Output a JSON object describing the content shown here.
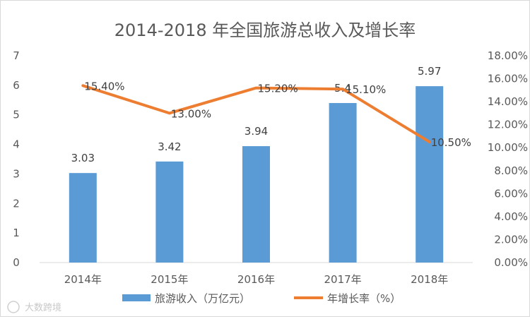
{
  "chart_data": {
    "type": "bar+line",
    "title": "2014-2018 年全国旅游总收入及增长率",
    "categories": [
      "2014年",
      "2015年",
      "2016年",
      "2017年",
      "2018年"
    ],
    "series": [
      {
        "name": "旅游收入（万亿元）",
        "type": "bar",
        "axis": "left",
        "color": "#5B9BD5",
        "values": [
          3.03,
          3.42,
          3.94,
          5.4,
          5.97
        ],
        "labels": [
          "3.03",
          "3.42",
          "3.94",
          "5.4",
          "5.97"
        ]
      },
      {
        "name": "年增长率（%）",
        "type": "line",
        "axis": "right",
        "color": "#ED7D31",
        "values": [
          15.4,
          13.0,
          15.2,
          15.1,
          10.5
        ],
        "labels": [
          "15.40%",
          "13.00%",
          "15.20%",
          "15.10%",
          "10.50%"
        ]
      }
    ],
    "y_left": {
      "min": 0,
      "max": 7,
      "step": 1,
      "tick_labels": [
        "0",
        "1",
        "2",
        "3",
        "4",
        "5",
        "6",
        "7"
      ]
    },
    "y_right": {
      "min": 0,
      "max": 18,
      "step": 2,
      "tick_labels": [
        "0.00%",
        "2.00%",
        "4.00%",
        "6.00%",
        "8.00%",
        "10.00%",
        "12.00%",
        "14.00%",
        "16.00%",
        "18.00%"
      ]
    },
    "legend_position": "bottom",
    "grid": false
  },
  "watermark": {
    "text": "大数跨境"
  },
  "colors": {
    "axis": "#d9d9d9",
    "text": "#595959"
  }
}
